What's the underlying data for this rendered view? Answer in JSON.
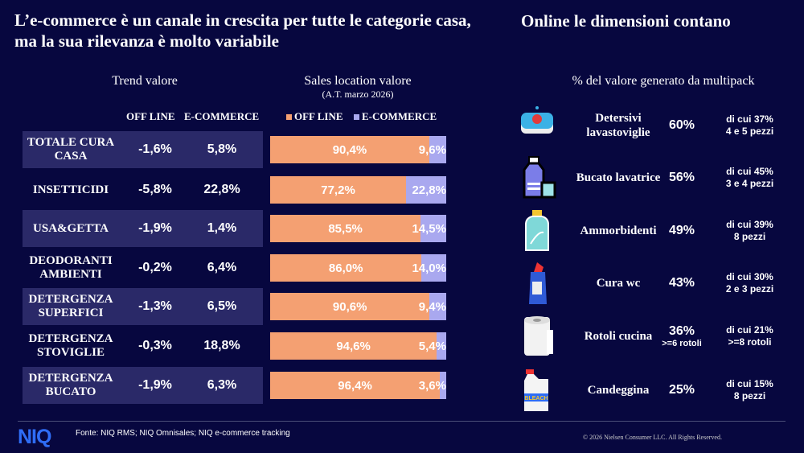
{
  "title": "L’e-commerce è un canale in crescita per tutte le categorie casa, ma la sua rilevanza è molto variabile",
  "right_title": "Online le dimensioni contano",
  "trend_heading": "Trend valore",
  "sales_heading": "Sales location valore",
  "sales_subheading": "(A.T. marzo 2026)",
  "multipack_heading": "% del valore generato da multipack",
  "col_offline": "OFF LINE",
  "col_ecommerce": "E-COMMERCE",
  "colors": {
    "offline": "#f4a072",
    "ecommerce": "#a9a8ef",
    "background": "#07073f",
    "row_highlight": "#2a2968",
    "logo": "#2f6df6"
  },
  "chart_data": {
    "type": "bar",
    "stacked": true,
    "orientation": "horizontal",
    "title": "Sales location valore",
    "subtitle": "(A.T. marzo 2026)",
    "legend": "top",
    "categories": [
      "TOTALE CURA CASA",
      "INSETTICIDI",
      "USA&GETTA",
      "DEODORANTI AMBIENTI",
      "DETERGENZA SUPERFICI",
      "DETERGENZA STOVIGLIE",
      "DETERGENZA BUCATO"
    ],
    "series": [
      {
        "name": "OFF LINE",
        "values": [
          90.4,
          77.2,
          85.5,
          86.0,
          90.6,
          94.6,
          96.4
        ],
        "labels": [
          "90,4%",
          "77,2%",
          "85,5%",
          "86,0%",
          "90,6%",
          "94,6%",
          "96,4%"
        ]
      },
      {
        "name": "E-COMMERCE",
        "values": [
          9.6,
          22.8,
          14.5,
          14.0,
          9.4,
          5.4,
          3.6
        ],
        "labels": [
          "9,6%",
          "22,8%",
          "14,5%",
          "14,0%",
          "9,4%",
          "5,4%",
          "3,6%"
        ]
      }
    ]
  },
  "trend": [
    {
      "label": "TOTALE CURA CASA",
      "offline": "-1,6%",
      "ecommerce": "5,8%"
    },
    {
      "label": "INSETTICIDI",
      "offline": "-5,8%",
      "ecommerce": "22,8%"
    },
    {
      "label": "USA&GETTA",
      "offline": "-1,9%",
      "ecommerce": "1,4%"
    },
    {
      "label": "DEODORANTI AMBIENTI",
      "offline": "-0,2%",
      "ecommerce": "6,4%"
    },
    {
      "label": "DETERGENZA SUPERFICI",
      "offline": "-1,3%",
      "ecommerce": "6,5%"
    },
    {
      "label": "DETERGENZA STOVIGLIE",
      "offline": "-0,3%",
      "ecommerce": "18,8%"
    },
    {
      "label": "DETERGENZA BUCATO",
      "offline": "-1,9%",
      "ecommerce": "6,3%"
    }
  ],
  "multipack": [
    {
      "name": "Detersivi lavastoviglie",
      "pct": "60%",
      "note": "",
      "detail1": "di cui 37%",
      "detail2": "4 e 5 pezzi",
      "icon": "dishwasher-tablet-icon"
    },
    {
      "name": "Bucato lavatrice",
      "pct": "56%",
      "note": "",
      "detail1": "di cui 45%",
      "detail2": "3 e 4 pezzi",
      "icon": "detergent-bottle-icon"
    },
    {
      "name": "Ammorbidenti",
      "pct": "49%",
      "note": "",
      "detail1": "di cui 39%",
      "detail2": "8 pezzi",
      "icon": "softener-bottle-icon"
    },
    {
      "name": "Cura wc",
      "pct": "43%",
      "note": "",
      "detail1": "di cui 30%",
      "detail2": "2 e 3 pezzi",
      "icon": "toilet-cleaner-icon"
    },
    {
      "name": "Rotoli cucina",
      "pct": "36%",
      "note": ">=6 rotoli",
      "detail1": "di cui 21%",
      "detail2": ">=8 rotoli",
      "icon": "paper-roll-icon"
    },
    {
      "name": "Candeggina",
      "pct": "25%",
      "note": "",
      "detail1": "di cui 15%",
      "detail2": "8 pezzi",
      "icon": "bleach-bottle-icon"
    }
  ],
  "footer": {
    "source": "Fonte: NIQ RMS; NIQ Omnisales; NIQ e-commerce tracking",
    "copyright": "© 2026 Nielsen Consumer LLC. All Rights Reserved.",
    "logo": "NIQ"
  },
  "bleach_label": "BLEACH"
}
